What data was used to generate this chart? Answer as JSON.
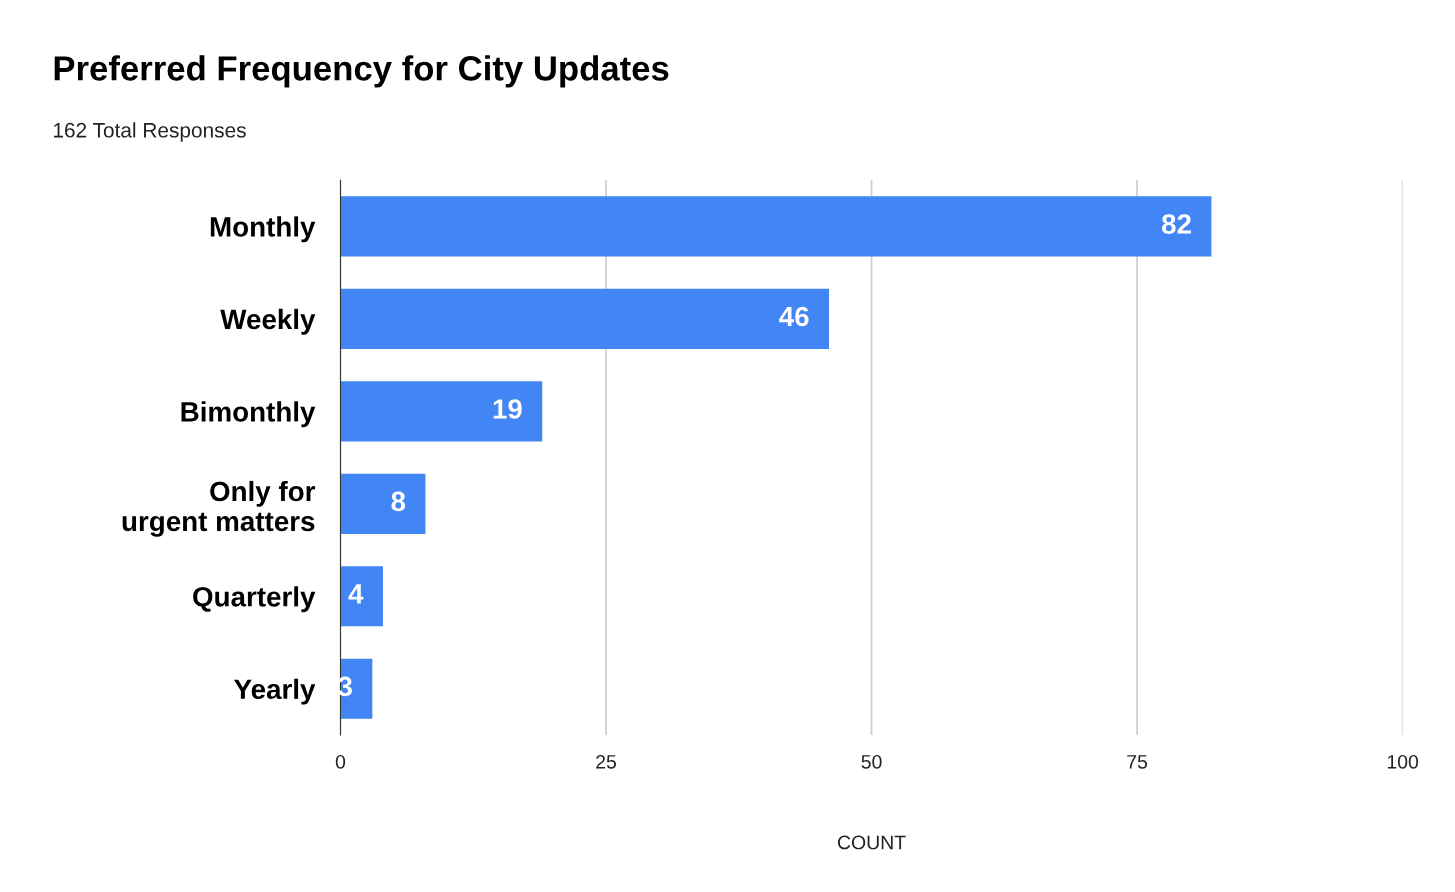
{
  "chart_data": {
    "type": "bar",
    "orientation": "horizontal",
    "title": "Preferred Frequency for City Updates",
    "subtitle": "162 Total Responses",
    "xlabel": "COUNT",
    "categories": [
      "Monthly",
      "Weekly",
      "Bimonthly",
      "Only for\nurgent matters",
      "Quarterly",
      "Yearly"
    ],
    "values": [
      82,
      46,
      19,
      8,
      4,
      3
    ],
    "color": "#4285f4",
    "xlim": [
      0,
      100
    ],
    "xticks": [
      0,
      25,
      50,
      75,
      100
    ],
    "grid": "x",
    "data_labels": true
  }
}
